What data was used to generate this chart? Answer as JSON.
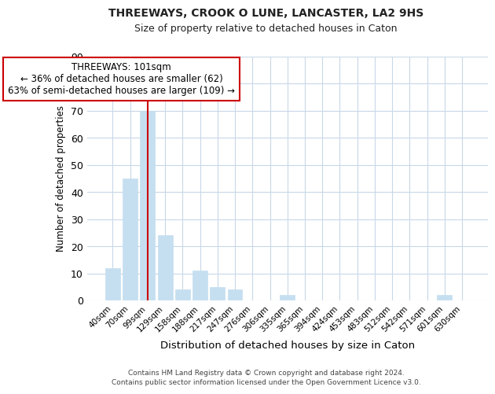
{
  "title": "THREEWAYS, CROOK O LUNE, LANCASTER, LA2 9HS",
  "subtitle": "Size of property relative to detached houses in Caton",
  "xlabel": "Distribution of detached houses by size in Caton",
  "ylabel": "Number of detached properties",
  "bar_labels": [
    "40sqm",
    "70sqm",
    "99sqm",
    "129sqm",
    "158sqm",
    "188sqm",
    "217sqm",
    "247sqm",
    "276sqm",
    "306sqm",
    "335sqm",
    "365sqm",
    "394sqm",
    "424sqm",
    "453sqm",
    "483sqm",
    "512sqm",
    "542sqm",
    "571sqm",
    "601sqm",
    "630sqm"
  ],
  "bar_values": [
    12,
    45,
    70,
    24,
    4,
    11,
    5,
    4,
    0,
    0,
    2,
    0,
    0,
    0,
    0,
    0,
    0,
    0,
    0,
    2,
    0
  ],
  "bar_color": "#c5dff0",
  "highlight_bar_index": 2,
  "highlight_color": "#cc0000",
  "ylim": [
    0,
    90
  ],
  "yticks": [
    0,
    10,
    20,
    30,
    40,
    50,
    60,
    70,
    80,
    90
  ],
  "annotation_title": "THREEWAYS: 101sqm",
  "annotation_line1": "← 36% of detached houses are smaller (62)",
  "annotation_line2": "63% of semi-detached houses are larger (109) →",
  "footer1": "Contains HM Land Registry data © Crown copyright and database right 2024.",
  "footer2": "Contains public sector information licensed under the Open Government Licence v3.0.",
  "background_color": "#ffffff",
  "grid_color": "#c8d8e8"
}
